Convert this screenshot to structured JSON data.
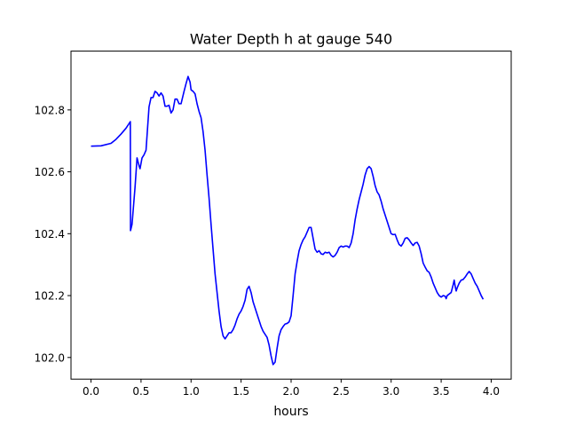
{
  "chart_data": {
    "type": "line",
    "title": "Water Depth h at gauge 540",
    "xlabel": "hours",
    "ylabel": "",
    "xlim": [
      -0.2,
      4.2
    ],
    "ylim": [
      101.93,
      102.99
    ],
    "grid": false,
    "x_ticks": [
      0.0,
      0.5,
      1.0,
      1.5,
      2.0,
      2.5,
      3.0,
      3.5,
      4.0
    ],
    "x_tick_labels": [
      "0.0",
      "0.5",
      "1.0",
      "1.5",
      "2.0",
      "2.5",
      "3.0",
      "3.5",
      "4.0"
    ],
    "y_ticks": [
      102.0,
      102.2,
      102.4,
      102.6,
      102.8
    ],
    "y_tick_labels": [
      "102.0",
      "102.2",
      "102.4",
      "102.6",
      "102.8"
    ],
    "series": [
      {
        "color": "#0000ff",
        "points": [
          [
            0.0,
            102.683
          ],
          [
            0.1,
            102.684
          ],
          [
            0.2,
            102.692
          ],
          [
            0.25,
            102.705
          ],
          [
            0.3,
            102.722
          ],
          [
            0.35,
            102.741
          ],
          [
            0.393,
            102.762
          ],
          [
            0.395,
            102.41
          ],
          [
            0.41,
            102.43
          ],
          [
            0.44,
            102.55
          ],
          [
            0.46,
            102.645
          ],
          [
            0.48,
            102.62
          ],
          [
            0.49,
            102.61
          ],
          [
            0.51,
            102.645
          ],
          [
            0.53,
            102.655
          ],
          [
            0.55,
            102.67
          ],
          [
            0.58,
            102.81
          ],
          [
            0.6,
            102.84
          ],
          [
            0.62,
            102.84
          ],
          [
            0.64,
            102.86
          ],
          [
            0.66,
            102.855
          ],
          [
            0.68,
            102.845
          ],
          [
            0.7,
            102.855
          ],
          [
            0.72,
            102.845
          ],
          [
            0.74,
            102.812
          ],
          [
            0.76,
            102.812
          ],
          [
            0.78,
            102.815
          ],
          [
            0.8,
            102.79
          ],
          [
            0.82,
            102.8
          ],
          [
            0.84,
            102.835
          ],
          [
            0.86,
            102.835
          ],
          [
            0.88,
            102.82
          ],
          [
            0.9,
            102.82
          ],
          [
            0.93,
            102.86
          ],
          [
            0.95,
            102.885
          ],
          [
            0.97,
            102.908
          ],
          [
            0.99,
            102.89
          ],
          [
            1.0,
            102.865
          ],
          [
            1.02,
            102.86
          ],
          [
            1.04,
            102.852
          ],
          [
            1.06,
            102.82
          ],
          [
            1.08,
            102.795
          ],
          [
            1.1,
            102.775
          ],
          [
            1.12,
            102.73
          ],
          [
            1.14,
            102.67
          ],
          [
            1.16,
            102.59
          ],
          [
            1.18,
            102.515
          ],
          [
            1.2,
            102.43
          ],
          [
            1.22,
            102.35
          ],
          [
            1.24,
            102.27
          ],
          [
            1.26,
            102.21
          ],
          [
            1.28,
            102.15
          ],
          [
            1.3,
            102.1
          ],
          [
            1.32,
            102.07
          ],
          [
            1.34,
            102.06
          ],
          [
            1.36,
            102.07
          ],
          [
            1.38,
            102.08
          ],
          [
            1.4,
            102.08
          ],
          [
            1.42,
            102.09
          ],
          [
            1.44,
            102.105
          ],
          [
            1.46,
            102.125
          ],
          [
            1.48,
            102.14
          ],
          [
            1.5,
            102.15
          ],
          [
            1.52,
            102.165
          ],
          [
            1.54,
            102.185
          ],
          [
            1.56,
            102.22
          ],
          [
            1.58,
            102.23
          ],
          [
            1.6,
            102.21
          ],
          [
            1.62,
            102.18
          ],
          [
            1.64,
            102.16
          ],
          [
            1.66,
            102.14
          ],
          [
            1.68,
            102.12
          ],
          [
            1.7,
            102.1
          ],
          [
            1.72,
            102.085
          ],
          [
            1.74,
            102.075
          ],
          [
            1.76,
            102.065
          ],
          [
            1.78,
            102.04
          ],
          [
            1.8,
            102.005
          ],
          [
            1.82,
            101.977
          ],
          [
            1.84,
            101.985
          ],
          [
            1.86,
            102.03
          ],
          [
            1.88,
            102.07
          ],
          [
            1.9,
            102.09
          ],
          [
            1.92,
            102.1
          ],
          [
            1.94,
            102.108
          ],
          [
            1.96,
            102.11
          ],
          [
            1.98,
            102.115
          ],
          [
            2.0,
            102.135
          ],
          [
            2.02,
            102.2
          ],
          [
            2.04,
            102.27
          ],
          [
            2.06,
            102.31
          ],
          [
            2.08,
            102.345
          ],
          [
            2.1,
            102.365
          ],
          [
            2.12,
            102.38
          ],
          [
            2.14,
            102.39
          ],
          [
            2.16,
            102.405
          ],
          [
            2.18,
            102.42
          ],
          [
            2.2,
            102.42
          ],
          [
            2.22,
            102.385
          ],
          [
            2.24,
            102.35
          ],
          [
            2.26,
            102.34
          ],
          [
            2.28,
            102.345
          ],
          [
            2.3,
            102.335
          ],
          [
            2.32,
            102.333
          ],
          [
            2.34,
            102.34
          ],
          [
            2.36,
            102.338
          ],
          [
            2.38,
            102.34
          ],
          [
            2.4,
            102.33
          ],
          [
            2.42,
            102.325
          ],
          [
            2.44,
            102.33
          ],
          [
            2.46,
            102.34
          ],
          [
            2.48,
            102.355
          ],
          [
            2.5,
            102.36
          ],
          [
            2.52,
            102.357
          ],
          [
            2.54,
            102.36
          ],
          [
            2.56,
            102.36
          ],
          [
            2.58,
            102.355
          ],
          [
            2.6,
            102.37
          ],
          [
            2.62,
            102.4
          ],
          [
            2.64,
            102.445
          ],
          [
            2.66,
            102.48
          ],
          [
            2.68,
            102.51
          ],
          [
            2.7,
            102.535
          ],
          [
            2.72,
            102.56
          ],
          [
            2.74,
            102.59
          ],
          [
            2.76,
            102.61
          ],
          [
            2.78,
            102.617
          ],
          [
            2.8,
            102.61
          ],
          [
            2.82,
            102.585
          ],
          [
            2.84,
            102.555
          ],
          [
            2.86,
            102.535
          ],
          [
            2.88,
            102.525
          ],
          [
            2.9,
            102.505
          ],
          [
            2.92,
            102.48
          ],
          [
            2.94,
            102.46
          ],
          [
            2.96,
            102.44
          ],
          [
            2.98,
            102.42
          ],
          [
            3.0,
            102.4
          ],
          [
            3.02,
            102.397
          ],
          [
            3.04,
            102.398
          ],
          [
            3.06,
            102.38
          ],
          [
            3.08,
            102.365
          ],
          [
            3.1,
            102.36
          ],
          [
            3.12,
            102.37
          ],
          [
            3.14,
            102.385
          ],
          [
            3.16,
            102.387
          ],
          [
            3.18,
            102.38
          ],
          [
            3.2,
            102.37
          ],
          [
            3.22,
            102.362
          ],
          [
            3.24,
            102.37
          ],
          [
            3.26,
            102.372
          ],
          [
            3.28,
            102.36
          ],
          [
            3.3,
            102.335
          ],
          [
            3.32,
            102.305
          ],
          [
            3.34,
            102.292
          ],
          [
            3.36,
            102.28
          ],
          [
            3.38,
            102.275
          ],
          [
            3.4,
            102.26
          ],
          [
            3.42,
            102.24
          ],
          [
            3.44,
            102.225
          ],
          [
            3.46,
            102.21
          ],
          [
            3.48,
            102.2
          ],
          [
            3.5,
            102.195
          ],
          [
            3.52,
            102.2
          ],
          [
            3.54,
            102.198
          ],
          [
            3.55,
            102.19
          ],
          [
            3.56,
            102.2
          ],
          [
            3.58,
            102.205
          ],
          [
            3.6,
            102.21
          ],
          [
            3.62,
            102.235
          ],
          [
            3.63,
            102.25
          ],
          [
            3.64,
            102.23
          ],
          [
            3.65,
            102.215
          ],
          [
            3.66,
            102.225
          ],
          [
            3.68,
            102.24
          ],
          [
            3.7,
            102.25
          ],
          [
            3.72,
            102.252
          ],
          [
            3.74,
            102.26
          ],
          [
            3.76,
            102.27
          ],
          [
            3.78,
            102.278
          ],
          [
            3.8,
            102.27
          ],
          [
            3.82,
            102.255
          ],
          [
            3.84,
            102.24
          ],
          [
            3.86,
            102.23
          ],
          [
            3.88,
            102.215
          ],
          [
            3.9,
            102.2
          ],
          [
            3.92,
            102.188
          ]
        ]
      }
    ]
  }
}
